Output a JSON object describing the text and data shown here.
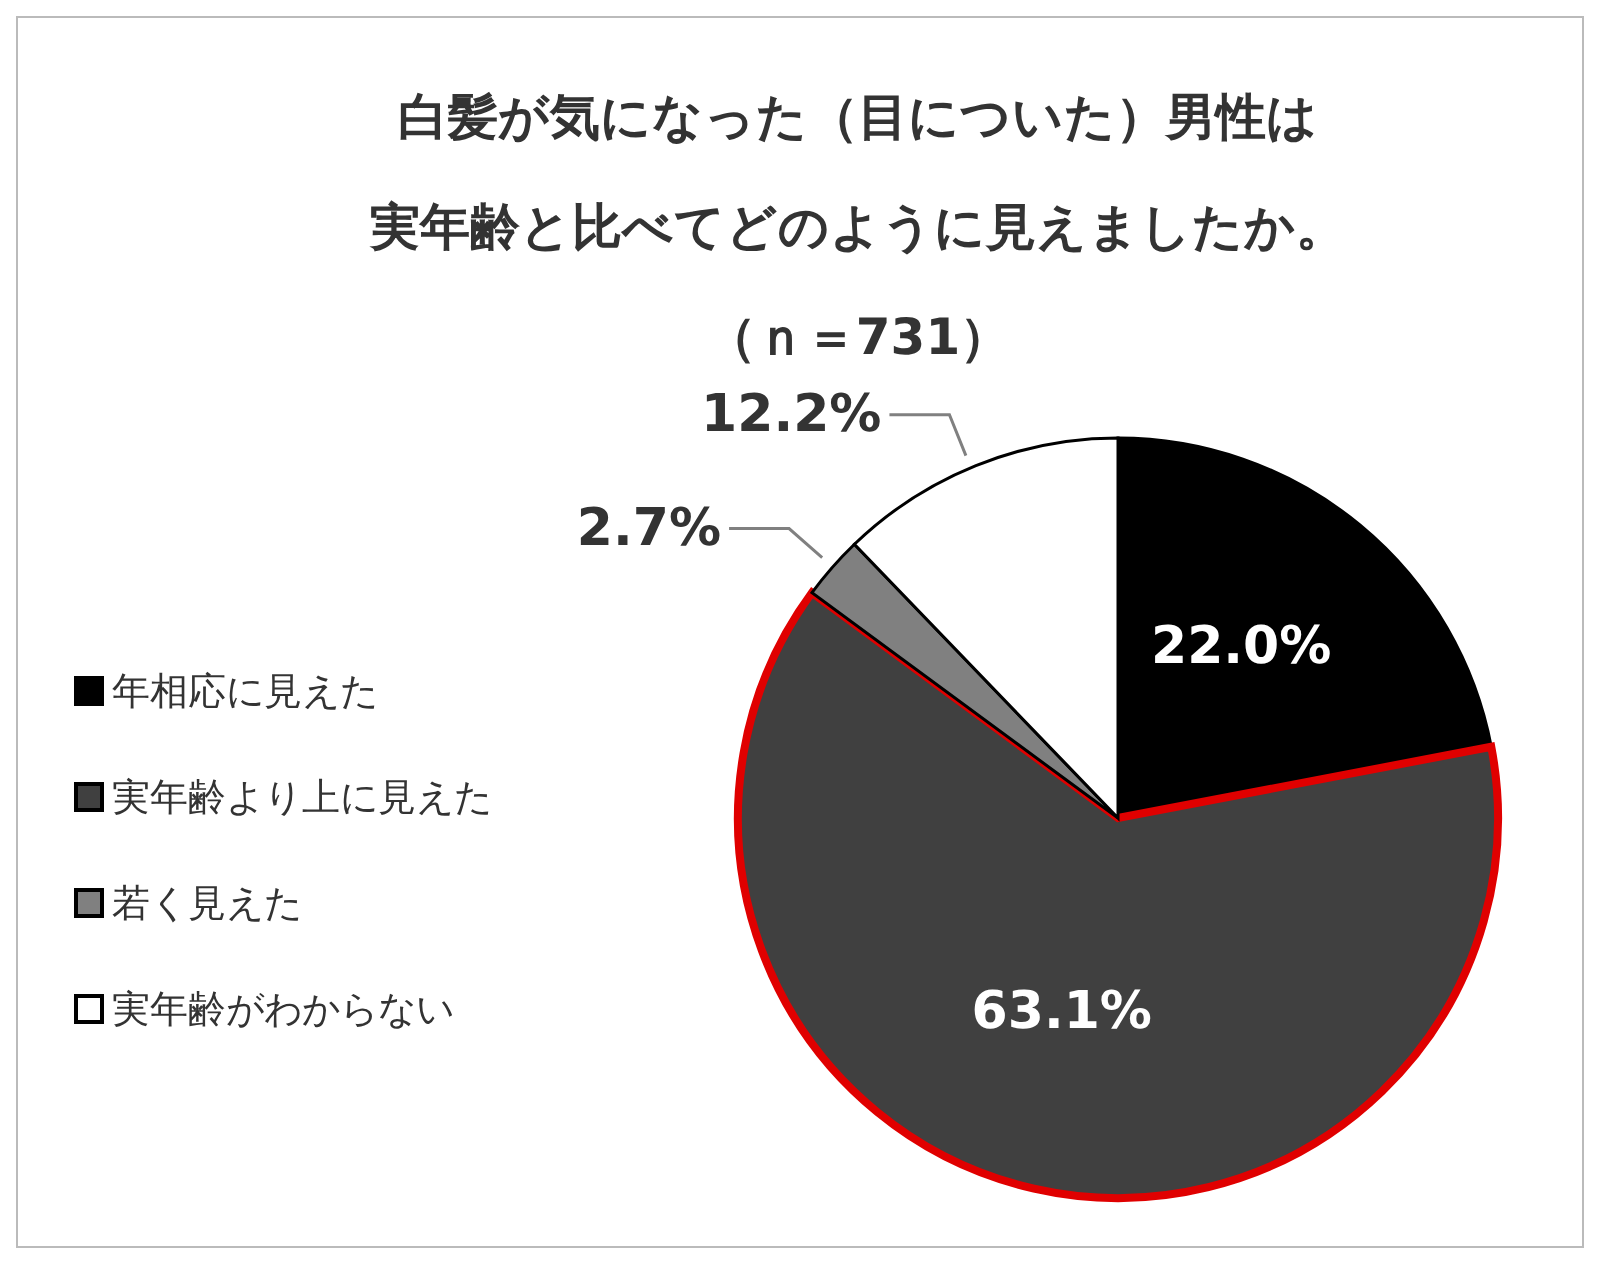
{
  "chart_data": {
    "type": "pie",
    "title": "白髪が気になった（目についた）男性は",
    "subtitle": "実年齢と比べてどのように見えましたか。",
    "annotations": [
      "（ｎ＝731）"
    ],
    "categories": [
      "年相応に見えた",
      "実年齢より上に見えた",
      "若く見えた",
      "実年齢がわからない"
    ],
    "values": [
      22.0,
      63.1,
      2.7,
      12.2
    ],
    "colors": [
      "#000000",
      "#404040",
      "#808080",
      "#ffffff"
    ],
    "value_labels": [
      "22.0%",
      "63.1%",
      "2.7%",
      "12.2%"
    ],
    "legend": "left"
  }
}
